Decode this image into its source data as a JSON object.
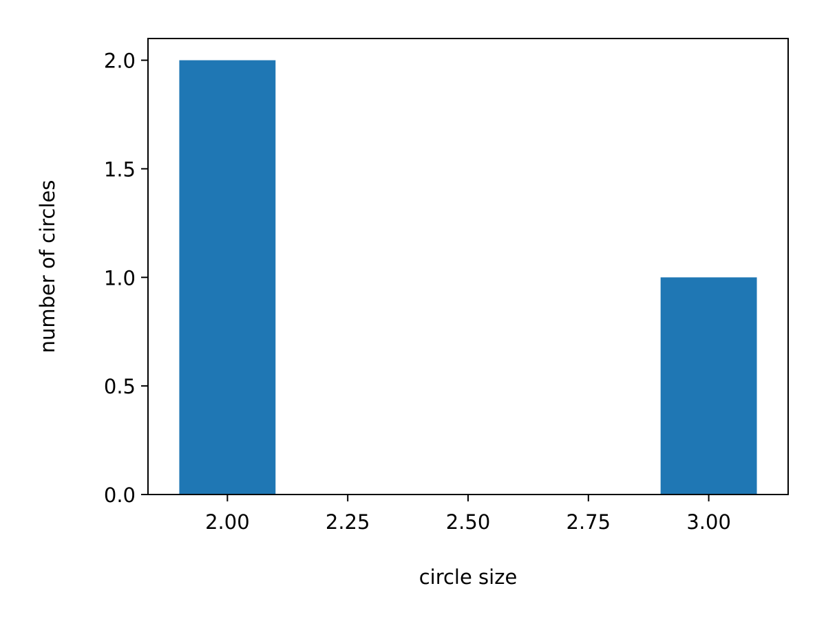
{
  "chart_data": {
    "type": "bar",
    "xlabel": "circle size",
    "ylabel": "number of circles",
    "bars": [
      {
        "x": 2.0,
        "value": 2,
        "width": 0.2
      },
      {
        "x": 3.0,
        "value": 1,
        "width": 0.2
      }
    ],
    "xlim": [
      1.835,
      3.165
    ],
    "ylim": [
      0,
      2.1
    ],
    "xticks": [
      2.0,
      2.25,
      2.5,
      2.75,
      3.0
    ],
    "xtick_labels": [
      "2.00",
      "2.25",
      "2.50",
      "2.75",
      "3.00"
    ],
    "yticks": [
      0.0,
      0.5,
      1.0,
      1.5,
      2.0
    ],
    "ytick_labels": [
      "0.0",
      "0.5",
      "1.0",
      "1.5",
      "2.0"
    ],
    "bar_color": "#1f77b4",
    "grid": false,
    "legend": "none"
  }
}
